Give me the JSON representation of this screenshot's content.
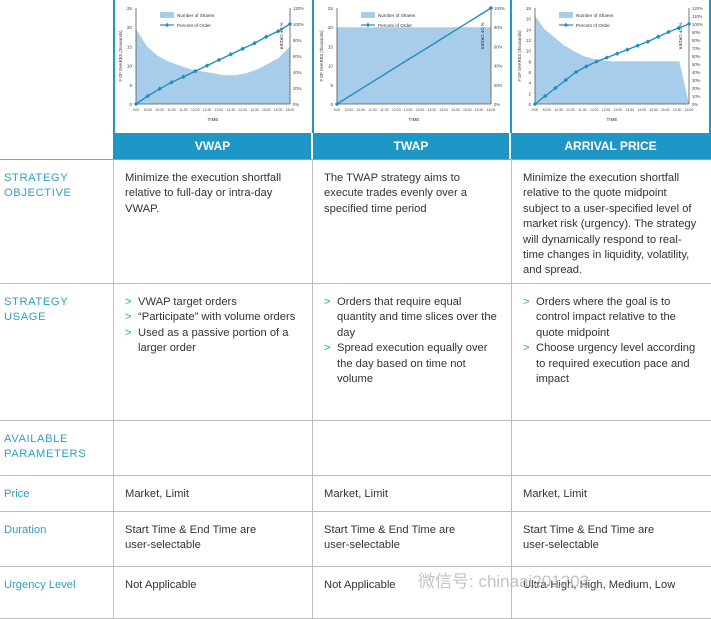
{
  "columns": [
    {
      "name": "VWAP"
    },
    {
      "name": "TWAP"
    },
    {
      "name": "ARRIVAL PRICE"
    }
  ],
  "rows": {
    "strategy_objective": {
      "label_line1": "STRATEGY",
      "label_line2": "OBJECTIVE",
      "cells": [
        "Minimize the execution shortfall relative to full-day or intra-day VWAP.",
        "The TWAP strategy aims to execute trades evenly over a specified time period",
        "Minimize the execution shortfall relative to the quote midpoint subject to a user-specified level of market risk (urgency). The strategy will dynamically respond to real-time changes in liquidity, volatility, and spread."
      ]
    },
    "strategy_usage": {
      "label_line1": "STRATEGY",
      "label_line2": "USAGE",
      "bullet_marker": ">",
      "cells": [
        [
          "VWAP target orders",
          "“Participate” with volume orders",
          "Used as a passive portion of a larger order"
        ],
        [
          "Orders that require equal quantity and time slices over the day",
          "Spread execution equally over the day based on time not volume"
        ],
        [
          "Orders where the goal is to control impact relative to the quote midpoint",
          "Choose urgency level according to required execution pace and impact"
        ]
      ]
    },
    "available_parameters": {
      "label_line1": "AVAILABLE",
      "label_line2": "PARAMETERS"
    },
    "price": {
      "label": "Price",
      "cells": [
        "Market, Limit",
        "Market, Limit",
        "Market, Limit"
      ]
    },
    "duration": {
      "label": "Duration",
      "cells": [
        "Start Time & End Time are user-selectable",
        "Start Time & End Time are user-selectable",
        "Start Time & End Time are user-selectable"
      ]
    },
    "urgency_level": {
      "label": "Urgency Level",
      "cells": [
        "Not Applicable",
        "Not Applicable",
        "Ultra-High, High, Medium, Low"
      ]
    }
  },
  "watermark": "微信号: chinaai201203",
  "colors": {
    "accent": "#1e97c7",
    "label": "#2f9fc4",
    "area": "#a8cdea",
    "line": "#1e8fbe"
  },
  "chart_data": [
    {
      "type": "area",
      "legend": [
        "Number of Shares",
        "Percent of Order"
      ],
      "xlabel": "TIME",
      "ylabel": "# OF SHARES (thousands)",
      "y2label": "% OF ORDER",
      "x_ticks": [
        "9:00",
        "10:00",
        "10:30",
        "11:00",
        "11:30",
        "12:00",
        "12:30",
        "13:00",
        "13:30",
        "14:00",
        "14:30",
        "15:00",
        "15:30",
        "16:00"
      ],
      "y_ticks": [
        "0",
        "5",
        "10",
        "15",
        "20",
        "25"
      ],
      "y2_ticks": [
        "0%",
        "20%",
        "40%",
        "60%",
        "80%",
        "100%",
        "120%"
      ],
      "ylim": [
        0,
        25
      ],
      "y2lim": [
        0,
        120
      ],
      "series": [
        {
          "name": "Number of Shares",
          "values": [
            19.5,
            15,
            12.5,
            11,
            10,
            9,
            8.5,
            8,
            7.5,
            7.5,
            8,
            9,
            10.5,
            12,
            15
          ]
        },
        {
          "name": "Percent of Order",
          "values": [
            0,
            10,
            19,
            27,
            34,
            41,
            48,
            55,
            62,
            69,
            76,
            84,
            91,
            100
          ]
        }
      ]
    },
    {
      "type": "area",
      "legend": [
        "Number of Shares",
        "Percent of Order"
      ],
      "xlabel": "TIME",
      "ylabel": "# OF SHARES (thousands)",
      "y2label": "% OF ORDER",
      "x_ticks": [
        "9:00",
        "10:00",
        "10:30",
        "11:00",
        "11:30",
        "12:00",
        "12:30",
        "13:00",
        "13:30",
        "14:00",
        "14:30",
        "15:00",
        "15:30",
        "16:00"
      ],
      "y_ticks": [
        "0",
        "5",
        "10",
        "15",
        "20",
        "25"
      ],
      "y2_ticks": [
        "0%",
        "20%",
        "40%",
        "60%",
        "80%",
        "100%"
      ],
      "ylim": [
        0,
        25
      ],
      "y2lim": [
        0,
        100
      ],
      "series": [
        {
          "name": "Number of Shares",
          "values": [
            20,
            20,
            20,
            20,
            20,
            20,
            20,
            20,
            20,
            20,
            20,
            20,
            20,
            20
          ]
        },
        {
          "name": "Percent of Order",
          "values": [
            0,
            7.7,
            15.4,
            23.1,
            30.8,
            38.5,
            46.2,
            53.8,
            61.5,
            69.2,
            76.9,
            84.6,
            92.3,
            100
          ]
        }
      ]
    },
    {
      "type": "area",
      "legend": [
        "Number of Shares",
        "Percent of Order"
      ],
      "xlabel": "TIME",
      "ylabel": "# OF SHARES (thousands)",
      "y2label": "% OF ORDER",
      "x_ticks": [
        "9:00",
        "10:00",
        "10:30",
        "11:00",
        "11:30",
        "12:00",
        "12:30",
        "13:00",
        "13:30",
        "14:00",
        "14:30",
        "15:00",
        "15:30",
        "16:00"
      ],
      "y_ticks": [
        "0",
        "2",
        "4",
        "6",
        "8",
        "10",
        "12",
        "14",
        "16",
        "18"
      ],
      "y2_ticks": [
        "0%",
        "10%",
        "20%",
        "30%",
        "40%",
        "50%",
        "60%",
        "70%",
        "80%",
        "90%",
        "100%",
        "110%",
        "120%"
      ],
      "ylim": [
        0,
        18
      ],
      "y2lim": [
        0,
        120
      ],
      "series": [
        {
          "name": "Number of Shares",
          "values": [
            16.5,
            14,
            12.5,
            11,
            10,
            9,
            8.5,
            8.2,
            8,
            8,
            8,
            8,
            8,
            8,
            8,
            8,
            0
          ]
        },
        {
          "name": "Percent of Order",
          "values": [
            0,
            10,
            20,
            30,
            40,
            47,
            53,
            58,
            63,
            68,
            73,
            78,
            84,
            90,
            95,
            100
          ]
        }
      ]
    }
  ]
}
